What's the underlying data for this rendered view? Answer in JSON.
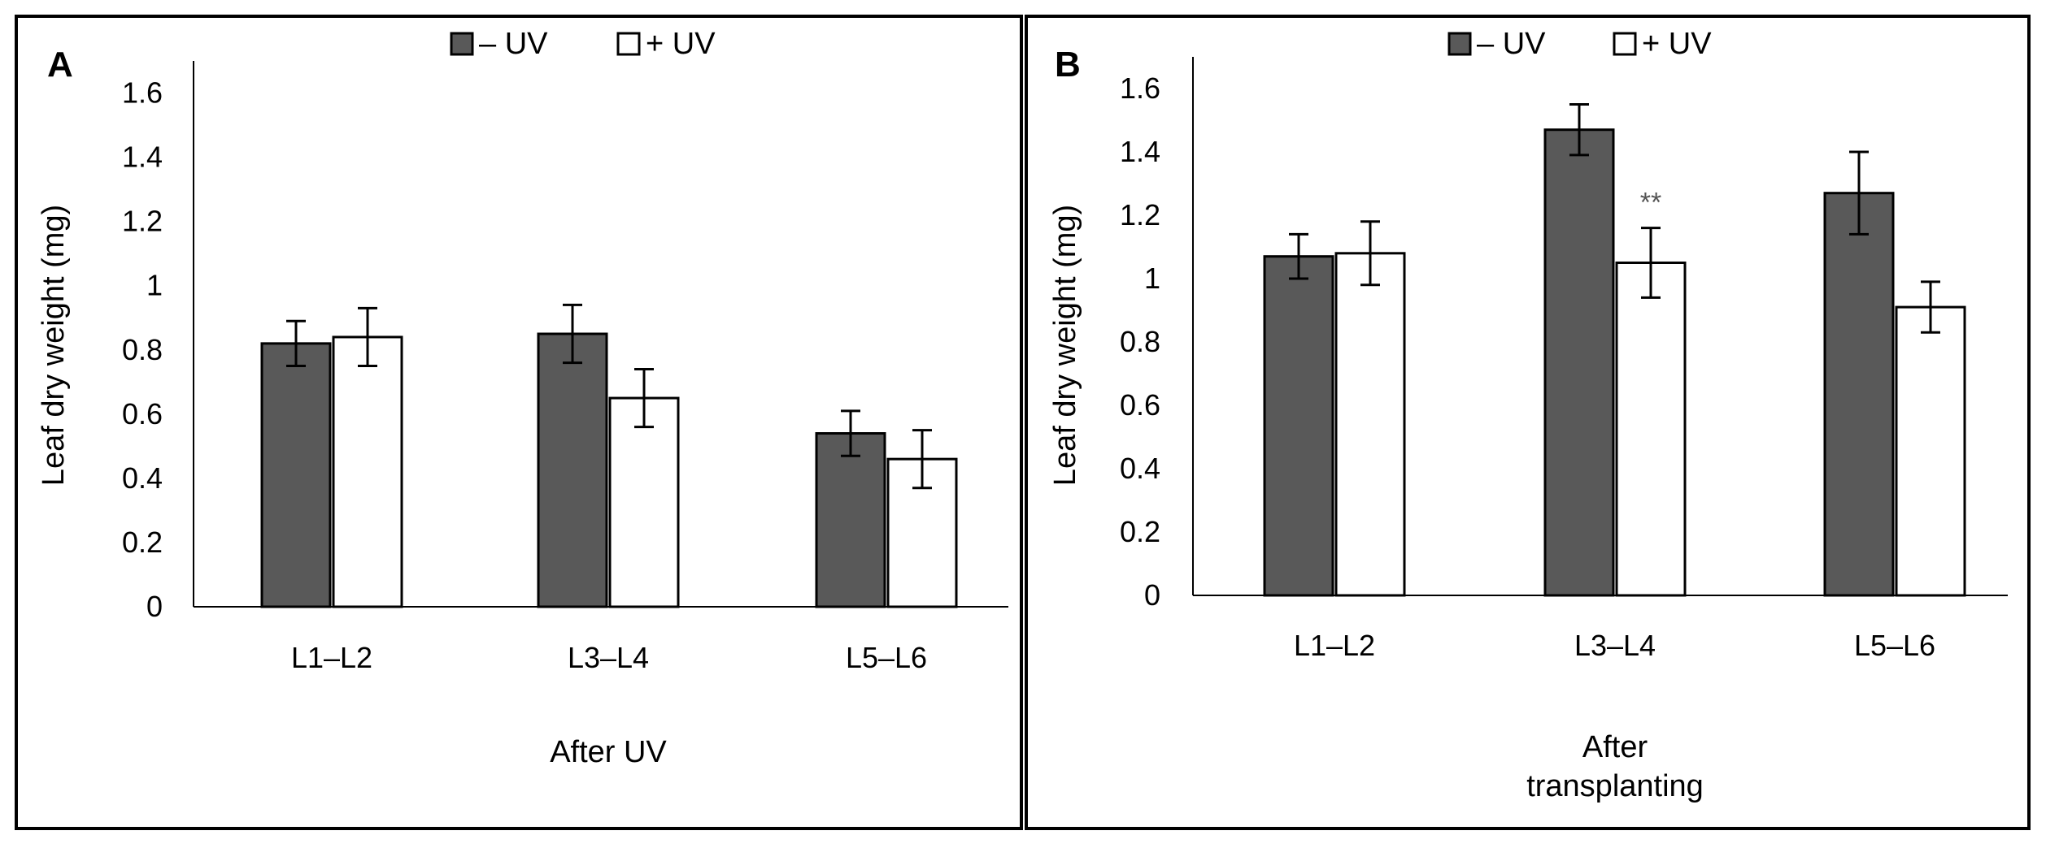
{
  "colors": {
    "minus_uv": "#595959",
    "plus_uv": "#ffffff",
    "stroke": "#000000",
    "annotation": "#555555"
  },
  "chart_data": [
    {
      "type": "bar",
      "panel_label": "A",
      "categories": [
        "L1–L2",
        "L3–L4",
        "L5–L6"
      ],
      "series": [
        {
          "name": "– UV",
          "values": [
            0.82,
            0.85,
            0.54
          ],
          "errors": [
            0.07,
            0.09,
            0.07
          ]
        },
        {
          "name": "+ UV",
          "values": [
            0.84,
            0.65,
            0.46
          ],
          "errors": [
            0.09,
            0.09,
            0.09
          ]
        }
      ],
      "yticks": [
        "0",
        "0.2",
        "0.4",
        "0.6",
        "0.8",
        "1",
        "1.2",
        "1.4",
        "1.6"
      ],
      "ylabel": "Leaf dry weight (mg)",
      "xlabel": [
        "After UV"
      ],
      "ylim": [
        0,
        1.7
      ],
      "legend_position": "top",
      "annotations": []
    },
    {
      "type": "bar",
      "panel_label": "B",
      "categories": [
        "L1–L2",
        "L3–L4",
        "L5–L6"
      ],
      "series": [
        {
          "name": "– UV",
          "values": [
            1.07,
            1.47,
            1.27
          ],
          "errors": [
            0.07,
            0.08,
            0.13
          ]
        },
        {
          "name": "+ UV",
          "values": [
            1.08,
            1.05,
            0.91
          ],
          "errors": [
            0.1,
            0.11,
            0.08
          ]
        }
      ],
      "yticks": [
        "0",
        "0.2",
        "0.4",
        "0.6",
        "0.8",
        "1",
        "1.2",
        "1.4",
        "1.6"
      ],
      "ylabel": "Leaf dry weight (mg)",
      "xlabel": [
        "After",
        "transplanting"
      ],
      "ylim": [
        0,
        1.7
      ],
      "legend_position": "top",
      "annotations": [
        {
          "category": 1,
          "series": 1,
          "text": "**"
        }
      ]
    }
  ]
}
